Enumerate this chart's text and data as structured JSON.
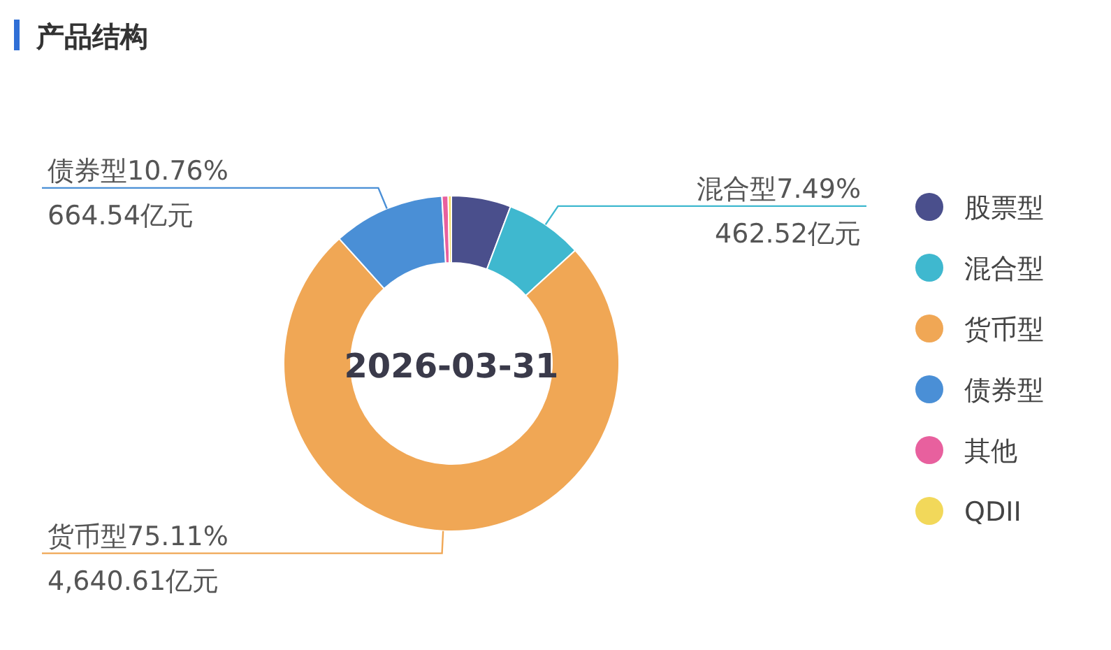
{
  "chart_data": {
    "type": "donut",
    "title": "产品结构",
    "categories": [
      "股票型",
      "混合型",
      "货币型",
      "债券型",
      "其他",
      "QDII"
    ],
    "values": [
      5.74,
      7.49,
      75.11,
      10.76,
      0.6,
      0.3
    ],
    "colors": [
      "#4a4f8c",
      "#3fb8cf",
      "#f0a755",
      "#4a8fd6",
      "#e8609e",
      "#f2d85a"
    ],
    "value_labels": [
      null,
      "混合型7.49%\n462.52亿元",
      "货币型75.11%\n4,640.61亿元",
      "债券型10.76%\n664.54亿元",
      null,
      null
    ],
    "annotations": [
      "2026-03-31"
    ],
    "legend": "right"
  }
}
